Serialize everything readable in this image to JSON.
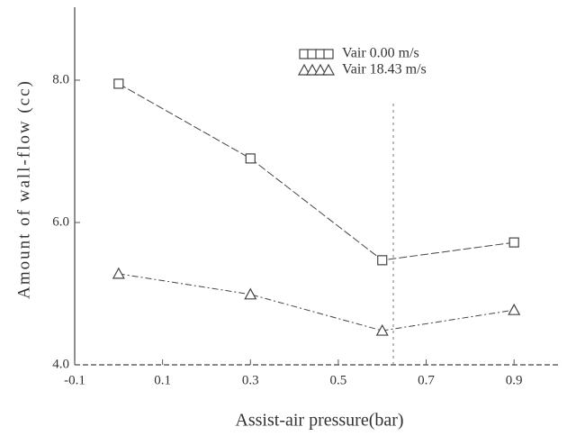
{
  "chart_data": {
    "type": "line",
    "x_label": "Assist-air pressure(bar)",
    "y_label": "Amount of wall-flow (cc)",
    "xlim": [
      -0.1,
      1.0
    ],
    "xticks": [
      -0.1,
      0.1,
      0.3,
      0.5,
      0.7,
      0.9
    ],
    "ylim": [
      4,
      9
    ],
    "yticks": [
      {
        "value": 4,
        "label": "4.0"
      },
      {
        "value": 6,
        "label": "6.0"
      },
      {
        "value": 8,
        "label": "8.0"
      }
    ],
    "series": [
      {
        "name": "Vair 0.00 m/s",
        "marker": "square",
        "color": "#444",
        "x": [
          0.0,
          0.3,
          0.6,
          0.9
        ],
        "values": [
          7.95,
          6.9,
          5.47,
          5.72
        ]
      },
      {
        "name": "Vair 18.43 m/s",
        "marker": "triangle",
        "color": "#444",
        "x": [
          0.0,
          0.3,
          0.6,
          0.9
        ],
        "values": [
          5.28,
          4.99,
          4.48,
          4.77
        ]
      }
    ]
  }
}
